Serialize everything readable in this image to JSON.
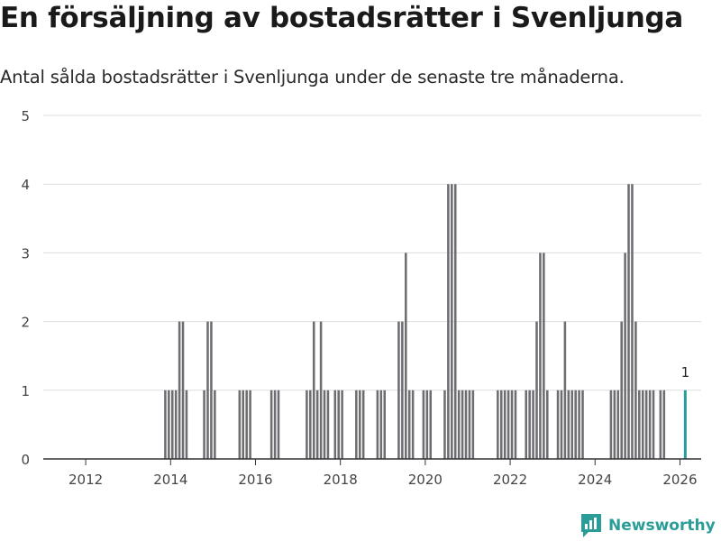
{
  "title": "En försäljning av bostadsrätter i Svenljunga",
  "subtitle": "Antal sålda bostadsrätter i Svenljunga under de senaste tre månaderna.",
  "brand": {
    "name": "Newsworthy",
    "icon": "newsworthy-logo-icon",
    "color": "#2a9d99"
  },
  "colors": {
    "bar": "#6d6d72",
    "highlight": "#2a9d99",
    "grid": "#dddddd",
    "axis": "#333333"
  },
  "chart_data": {
    "type": "bar",
    "title": "En försäljning av bostadsrätter i Svenljunga",
    "xlabel": "",
    "ylabel": "",
    "ylim": [
      0,
      5
    ],
    "xlim": [
      2011.0,
      2026.5
    ],
    "yticks": [
      "0",
      "1",
      "2",
      "3",
      "4",
      "5"
    ],
    "xticks": [
      {
        "year": 2012,
        "label": "2012"
      },
      {
        "year": 2014,
        "label": "2014"
      },
      {
        "year": 2016,
        "label": "2016"
      },
      {
        "year": 2018,
        "label": "2018"
      },
      {
        "year": 2020,
        "label": "2020"
      },
      {
        "year": 2022,
        "label": "2022"
      },
      {
        "year": 2024,
        "label": "2024"
      },
      {
        "year": 2026,
        "label": "2026"
      }
    ],
    "grid": true,
    "period_months": 3,
    "series": [
      {
        "name": "Antal sålda bostadsrätter",
        "points": [
          {
            "x": "2013-11",
            "y": 1
          },
          {
            "x": "2013-12",
            "y": 1
          },
          {
            "x": "2014-01",
            "y": 1
          },
          {
            "x": "2014-02",
            "y": 1
          },
          {
            "x": "2014-03",
            "y": 2
          },
          {
            "x": "2014-04",
            "y": 2
          },
          {
            "x": "2014-05",
            "y": 1
          },
          {
            "x": "2014-10",
            "y": 1
          },
          {
            "x": "2014-11",
            "y": 2
          },
          {
            "x": "2014-12",
            "y": 2
          },
          {
            "x": "2015-01",
            "y": 1
          },
          {
            "x": "2015-08",
            "y": 1
          },
          {
            "x": "2015-09",
            "y": 1
          },
          {
            "x": "2015-10",
            "y": 1
          },
          {
            "x": "2015-11",
            "y": 1
          },
          {
            "x": "2016-05",
            "y": 1
          },
          {
            "x": "2016-06",
            "y": 1
          },
          {
            "x": "2016-07",
            "y": 1
          },
          {
            "x": "2017-03",
            "y": 1
          },
          {
            "x": "2017-04",
            "y": 1
          },
          {
            "x": "2017-05",
            "y": 2
          },
          {
            "x": "2017-06",
            "y": 1
          },
          {
            "x": "2017-07",
            "y": 2
          },
          {
            "x": "2017-08",
            "y": 1
          },
          {
            "x": "2017-09",
            "y": 1
          },
          {
            "x": "2017-11",
            "y": 1
          },
          {
            "x": "2017-12",
            "y": 1
          },
          {
            "x": "2018-01",
            "y": 1
          },
          {
            "x": "2018-05",
            "y": 1
          },
          {
            "x": "2018-06",
            "y": 1
          },
          {
            "x": "2018-07",
            "y": 1
          },
          {
            "x": "2018-11",
            "y": 1
          },
          {
            "x": "2018-12",
            "y": 1
          },
          {
            "x": "2019-01",
            "y": 1
          },
          {
            "x": "2019-05",
            "y": 2
          },
          {
            "x": "2019-06",
            "y": 2
          },
          {
            "x": "2019-07",
            "y": 3
          },
          {
            "x": "2019-08",
            "y": 1
          },
          {
            "x": "2019-09",
            "y": 1
          },
          {
            "x": "2019-12",
            "y": 1
          },
          {
            "x": "2020-01",
            "y": 1
          },
          {
            "x": "2020-02",
            "y": 1
          },
          {
            "x": "2020-06",
            "y": 1
          },
          {
            "x": "2020-07",
            "y": 4
          },
          {
            "x": "2020-08",
            "y": 4
          },
          {
            "x": "2020-09",
            "y": 4
          },
          {
            "x": "2020-10",
            "y": 1
          },
          {
            "x": "2020-11",
            "y": 1
          },
          {
            "x": "2020-12",
            "y": 1
          },
          {
            "x": "2021-01",
            "y": 1
          },
          {
            "x": "2021-02",
            "y": 1
          },
          {
            "x": "2021-09",
            "y": 1
          },
          {
            "x": "2021-10",
            "y": 1
          },
          {
            "x": "2021-11",
            "y": 1
          },
          {
            "x": "2021-12",
            "y": 1
          },
          {
            "x": "2022-01",
            "y": 1
          },
          {
            "x": "2022-02",
            "y": 1
          },
          {
            "x": "2022-05",
            "y": 1
          },
          {
            "x": "2022-06",
            "y": 1
          },
          {
            "x": "2022-07",
            "y": 1
          },
          {
            "x": "2022-08",
            "y": 2
          },
          {
            "x": "2022-09",
            "y": 3
          },
          {
            "x": "2022-10",
            "y": 3
          },
          {
            "x": "2022-11",
            "y": 1
          },
          {
            "x": "2023-02",
            "y": 1
          },
          {
            "x": "2023-03",
            "y": 1
          },
          {
            "x": "2023-04",
            "y": 2
          },
          {
            "x": "2023-05",
            "y": 1
          },
          {
            "x": "2023-06",
            "y": 1
          },
          {
            "x": "2023-07",
            "y": 1
          },
          {
            "x": "2023-08",
            "y": 1
          },
          {
            "x": "2023-09",
            "y": 1
          },
          {
            "x": "2024-05",
            "y": 1
          },
          {
            "x": "2024-06",
            "y": 1
          },
          {
            "x": "2024-07",
            "y": 1
          },
          {
            "x": "2024-08",
            "y": 2
          },
          {
            "x": "2024-09",
            "y": 3
          },
          {
            "x": "2024-10",
            "y": 4
          },
          {
            "x": "2024-11",
            "y": 4
          },
          {
            "x": "2024-12",
            "y": 2
          },
          {
            "x": "2025-01",
            "y": 1
          },
          {
            "x": "2025-02",
            "y": 1
          },
          {
            "x": "2025-03",
            "y": 1
          },
          {
            "x": "2025-04",
            "y": 1
          },
          {
            "x": "2025-05",
            "y": 1
          },
          {
            "x": "2025-07",
            "y": 1
          },
          {
            "x": "2025-08",
            "y": 1
          }
        ]
      }
    ],
    "highlight": {
      "x": "2026-02",
      "y": 1,
      "label": "1"
    }
  }
}
